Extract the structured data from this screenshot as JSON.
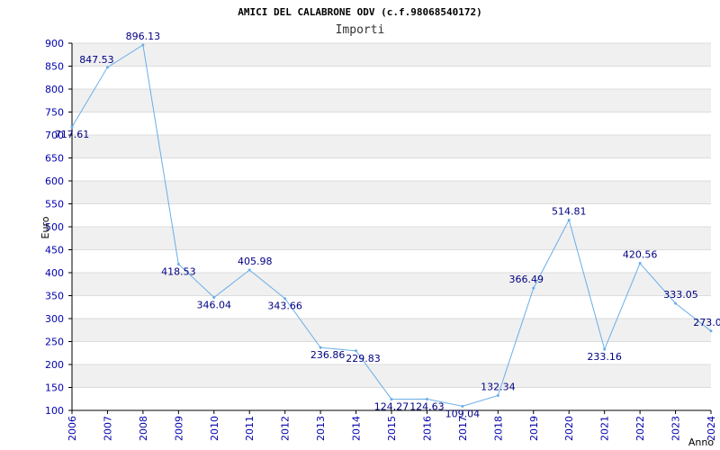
{
  "chart_data": {
    "type": "line",
    "title": "AMICI DEL CALABRONE ODV (c.f.98068540172)",
    "subtitle": "Importi",
    "xlabel": "Anno",
    "ylabel": "Euro",
    "ylim": [
      100,
      900
    ],
    "yticks": [
      "100",
      "150",
      "200",
      "250",
      "300",
      "350",
      "400",
      "450",
      "500",
      "550",
      "600",
      "650",
      "700",
      "750",
      "800",
      "850",
      "900"
    ],
    "x": [
      "2006",
      "2007",
      "2008",
      "2009",
      "2010",
      "2011",
      "2012",
      "2013",
      "2014",
      "2015",
      "2016",
      "2017",
      "2018",
      "2019",
      "2020",
      "2021",
      "2022",
      "2023",
      "2024"
    ],
    "values": [
      717.61,
      847.53,
      896.13,
      418.53,
      346.04,
      405.98,
      343.66,
      236.86,
      229.83,
      124.27,
      124.63,
      109.04,
      132.34,
      366.49,
      514.81,
      233.16,
      420.56,
      333.05,
      273.0
    ],
    "labels": [
      "717.61",
      "847.53",
      "896.13",
      "418.53",
      "346.04",
      "405.98",
      "343.66",
      "236.86",
      "229.83",
      "124.27",
      "124.63",
      "109.04",
      "132.34",
      "366.49",
      "514.81",
      "233.16",
      "420.56",
      "333.05",
      "273.0"
    ],
    "grid": true,
    "colors": {
      "line": "#6aaee8",
      "band": "#f0f0f0",
      "grid": "#dcdcdc",
      "tick": "#0000aa",
      "label": "#000080"
    }
  }
}
